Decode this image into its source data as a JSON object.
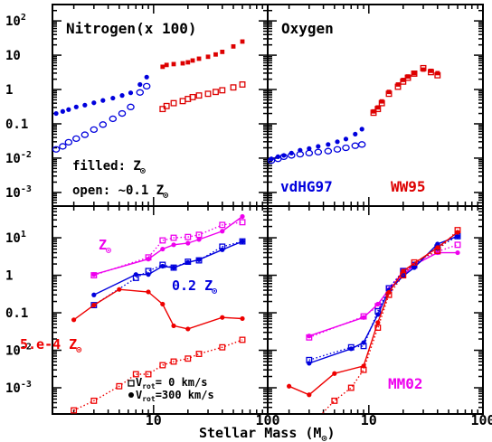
{
  "chart_data": [
    {
      "type": "scatter",
      "panel": "top-left",
      "title": "Nitrogen(x 100)",
      "xscale": "log",
      "yscale": "log",
      "xlim": [
        1.3,
        100
      ],
      "ylim": [
        0.0004,
        300
      ],
      "annotations": {
        "filled": "filled:",
        "open": "open: ~0.1"
      },
      "series": [
        {
          "name": "vdHG97",
          "marker": "filled-circle",
          "color": "#0000dd",
          "x": [
            1.4,
            1.6,
            1.8,
            2.1,
            2.5,
            3.0,
            3.6,
            4.4,
            5.3,
            6.3,
            7.6,
            8.7
          ],
          "y": [
            0.2,
            0.23,
            0.26,
            0.31,
            0.35,
            0.41,
            0.48,
            0.56,
            0.67,
            0.8,
            1.4,
            2.3
          ]
        },
        {
          "name": "vdHG97",
          "marker": "open-circle",
          "color": "#0000dd",
          "x": [
            1.4,
            1.6,
            1.8,
            2.1,
            2.5,
            3.0,
            3.6,
            4.4,
            5.3,
            6.3,
            7.6,
            8.7
          ],
          "y": [
            0.018,
            0.022,
            0.029,
            0.037,
            0.048,
            0.068,
            0.095,
            0.14,
            0.2,
            0.31,
            0.82,
            1.25
          ]
        },
        {
          "name": "WW95",
          "marker": "filled-square",
          "color": "#dd0000",
          "x": [
            12,
            13,
            15,
            18,
            20,
            22,
            25,
            30,
            35,
            40,
            50,
            60
          ],
          "y": [
            4.6,
            5.2,
            5.5,
            5.8,
            6.2,
            7.0,
            7.9,
            9.0,
            10.5,
            12.5,
            18,
            25
          ]
        },
        {
          "name": "WW95",
          "marker": "open-square",
          "color": "#dd0000",
          "x": [
            12,
            13,
            15,
            18,
            20,
            22,
            25,
            30,
            35,
            40,
            50,
            60
          ],
          "y": [
            0.27,
            0.33,
            0.4,
            0.46,
            0.53,
            0.6,
            0.67,
            0.75,
            0.85,
            0.95,
            1.15,
            1.4
          ]
        }
      ]
    },
    {
      "type": "scatter",
      "panel": "top-right",
      "title": "Oxygen",
      "xscale": "log",
      "yscale": "log",
      "xlim": [
        1.3,
        100
      ],
      "ylim": [
        0.0004,
        300
      ],
      "series": [
        {
          "name": "vdHG97",
          "marker": "filled-circle",
          "color": "#0000dd",
          "x": [
            1.4,
            1.6,
            1.8,
            2.1,
            2.5,
            3.0,
            3.6,
            4.4,
            5.3,
            6.3,
            7.6,
            8.7
          ],
          "y": [
            0.0095,
            0.011,
            0.012,
            0.014,
            0.017,
            0.019,
            0.022,
            0.025,
            0.03,
            0.036,
            0.05,
            0.07
          ]
        },
        {
          "name": "vdHG97",
          "marker": "open-circle",
          "color": "#0000dd",
          "x": [
            1.4,
            1.6,
            1.8,
            2.1,
            2.5,
            3.0,
            3.6,
            4.4,
            5.3,
            6.3,
            7.6,
            8.7
          ],
          "y": [
            0.0085,
            0.0095,
            0.011,
            0.012,
            0.013,
            0.014,
            0.015,
            0.016,
            0.018,
            0.02,
            0.023,
            0.025
          ]
        },
        {
          "name": "WW95",
          "marker": "filled-square",
          "color": "#dd0000",
          "x": [
            11,
            12,
            13,
            15,
            18,
            20,
            22,
            25,
            30,
            35,
            40
          ],
          "y": [
            0.23,
            0.3,
            0.45,
            0.85,
            1.4,
            1.9,
            2.4,
            3.0,
            3.8,
            3.5,
            3.0
          ]
        },
        {
          "name": "WW95",
          "marker": "open-square",
          "color": "#dd0000",
          "x": [
            11,
            12,
            13,
            15,
            18,
            20,
            22,
            25,
            30,
            35,
            40
          ],
          "y": [
            0.21,
            0.27,
            0.4,
            0.75,
            1.2,
            1.7,
            2.2,
            2.9,
            4.2,
            3.2,
            2.6
          ]
        }
      ],
      "labels": {
        "vdHG97": "vdHG97",
        "WW95": "WW95"
      }
    },
    {
      "type": "line",
      "panel": "bottom-left",
      "xscale": "log",
      "yscale": "log",
      "xlim": [
        1.3,
        100
      ],
      "ylim": [
        0.0002,
        70
      ],
      "series": [
        {
          "label": "Z",
          "rotation": "300",
          "style": "solid",
          "color": "#ee00ee",
          "x": [
            3,
            9,
            12,
            15,
            20,
            25,
            40,
            60
          ],
          "y": [
            1.05,
            2.7,
            5,
            6.5,
            7.2,
            9,
            15,
            37
          ]
        },
        {
          "label": "Z",
          "rotation": "0",
          "style": "dotted",
          "color": "#ee00ee",
          "x": [
            3,
            9,
            12,
            15,
            20,
            25,
            40,
            60
          ],
          "y": [
            1.0,
            3.0,
            8.5,
            10,
            10.5,
            12,
            22,
            26
          ]
        },
        {
          "label": "0.2 Z",
          "rotation": "300",
          "style": "solid",
          "color": "#0000dd",
          "x": [
            3,
            7,
            9,
            12,
            15,
            20,
            25,
            40,
            60
          ],
          "y": [
            0.3,
            1.05,
            1.05,
            1.75,
            1.6,
            2.2,
            2.6,
            4.8,
            8.0
          ]
        },
        {
          "label": "0.2 Z",
          "rotation": "0",
          "style": "dotted",
          "color": "#0000dd",
          "x": [
            3,
            7,
            9,
            12,
            15,
            20,
            25,
            40,
            60
          ],
          "y": [
            0.16,
            0.85,
            1.3,
            1.9,
            1.6,
            2.3,
            2.5,
            5.8,
            8.0
          ]
        },
        {
          "label": "5.e-4 Z",
          "rotation": "300",
          "style": "solid",
          "color": "#ee0000",
          "x": [
            2,
            3,
            5,
            9,
            12,
            15,
            20,
            40,
            60
          ],
          "y": [
            0.065,
            0.16,
            0.42,
            0.36,
            0.17,
            0.045,
            0.037,
            0.075,
            0.07
          ]
        },
        {
          "label": "5.e-4 Z",
          "rotation": "0",
          "style": "dotted",
          "color": "#ee0000",
          "x": [
            2,
            3,
            5,
            7,
            9,
            12,
            15,
            20,
            25,
            40,
            60
          ],
          "y": [
            0.00025,
            0.00045,
            0.0011,
            0.0023,
            0.0023,
            0.004,
            0.005,
            0.006,
            0.008,
            0.012,
            0.019
          ]
        }
      ],
      "labels": {
        "z": "Z",
        "z02": "0.2 Z",
        "z5e4": "5.e-4 Z"
      },
      "legend": {
        "open_label": "V",
        "open_sub": "rot",
        "open_value": "=  0 km/s",
        "filled_label": "V",
        "filled_sub": "rot",
        "filled_value": "=300 km/s"
      }
    },
    {
      "type": "line",
      "panel": "bottom-right",
      "xscale": "log",
      "yscale": "log",
      "xlim": [
        1.3,
        100
      ],
      "ylim": [
        0.0002,
        70
      ],
      "label": "MM02",
      "series": [
        {
          "label": "Z",
          "rotation": "300",
          "style": "solid",
          "color": "#ee00ee",
          "x": [
            3,
            9,
            12,
            15,
            20,
            25,
            40,
            60
          ],
          "y": [
            0.024,
            0.075,
            0.17,
            0.42,
            1.0,
            1.9,
            4.0,
            4.0
          ]
        },
        {
          "label": "Z",
          "rotation": "0",
          "style": "dotted",
          "color": "#ee00ee",
          "x": [
            3,
            9,
            12,
            15,
            20,
            25,
            40,
            60
          ],
          "y": [
            0.022,
            0.08,
            0.15,
            0.45,
            1.3,
            1.8,
            4.3,
            6.5
          ]
        },
        {
          "label": "0.2 Z",
          "rotation": "300",
          "style": "solid",
          "color": "#0000dd",
          "x": [
            3,
            7,
            9,
            12,
            15,
            20,
            25,
            40,
            60
          ],
          "y": [
            0.0045,
            0.011,
            0.016,
            0.09,
            0.4,
            0.95,
            1.6,
            6.8,
            11
          ]
        },
        {
          "label": "0.2 Z",
          "rotation": "0",
          "style": "dotted",
          "color": "#0000dd",
          "x": [
            3,
            7,
            9,
            12,
            15,
            20,
            25,
            40,
            60
          ],
          "y": [
            0.0055,
            0.012,
            0.013,
            0.11,
            0.45,
            1.3,
            1.9,
            5.5,
            11
          ]
        },
        {
          "label": "5.e-4 Z",
          "rotation": "300",
          "style": "solid",
          "color": "#ee0000",
          "x": [
            2,
            3,
            5,
            9,
            12,
            15,
            20,
            40,
            60
          ],
          "y": [
            0.0011,
            0.00065,
            0.0024,
            0.0038,
            0.055,
            0.35,
            1.3,
            5.5,
            14
          ]
        },
        {
          "label": "5.e-4 Z",
          "rotation": "0",
          "style": "dotted",
          "color": "#ee0000",
          "x": [
            2,
            3,
            5,
            7,
            9,
            12,
            15,
            20,
            25,
            40,
            60
          ],
          "y": [
            0.00011,
            9e-05,
            0.00045,
            0.001,
            0.003,
            0.04,
            0.3,
            1.0,
            2.2,
            4.5,
            16
          ]
        }
      ]
    }
  ],
  "axes": {
    "xlabel": "Stellar Mass (M",
    "xlabel_close": ")",
    "xtick_labels": [
      "10",
      "100"
    ],
    "top_ytick_labels": [
      "10",
      "10",
      "1",
      "0.1",
      "10",
      "10"
    ],
    "top_ytick_exps": [
      "2",
      "",
      "",
      "",
      "-2",
      "-3"
    ],
    "bottom_ytick_labels": [
      "10",
      "1",
      "0.1",
      "10",
      "10"
    ],
    "bottom_ytick_exps": [
      "1",
      "",
      "",
      "-2",
      "-3"
    ]
  },
  "text": {
    "nitrogen_title": "Nitrogen(x 100)",
    "oxygen_title": "Oxygen",
    "filled": "filled: Z",
    "open": "open: ~0.1 Z",
    "vdhg97": "vdHG97",
    "ww95": "WW95",
    "mm02": "MM02",
    "z_label": "Z",
    "z02_label": "0.2 Z",
    "z5e4_label": "5.e-4 Z",
    "legend_open": "V",
    "legend_open_sub": "rot",
    "legend_open_val": "=  0 km/s",
    "legend_filled": "V",
    "legend_filled_sub": "rot",
    "legend_filled_val": "=300 km/s",
    "xlabel": "Stellar Mass (M",
    "xlabel_close": ")"
  },
  "colors": {
    "blue": "#0000dd",
    "red": "#dd0000",
    "magenta": "#ee00ee",
    "axis": "#000000"
  }
}
